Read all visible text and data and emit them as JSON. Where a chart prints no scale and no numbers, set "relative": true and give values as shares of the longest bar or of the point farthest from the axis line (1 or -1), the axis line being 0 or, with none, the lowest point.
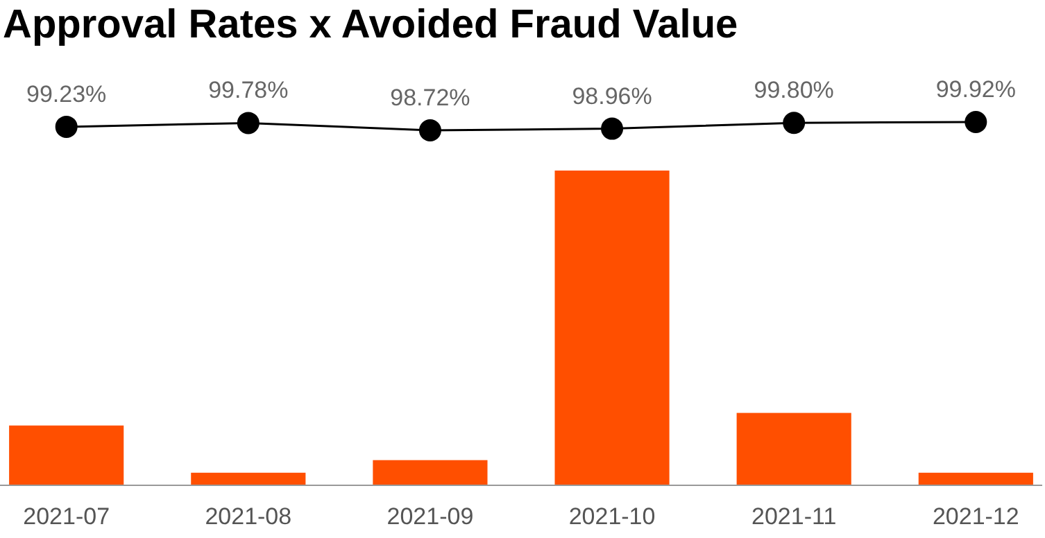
{
  "chart_data": [
    {
      "type": "line",
      "title": "Approval Rates x Avoided Fraud Value",
      "tick_labels": false,
      "marker": "circle",
      "categories": [
        "2021-07",
        "2021-08",
        "2021-09",
        "2021-10",
        "2021-11",
        "2021-12"
      ],
      "series": [
        {
          "color": "#000000",
          "values": [
            99.23,
            99.78,
            98.72,
            98.96,
            99.8,
            99.92
          ],
          "value_labels": [
            "99.23%",
            "99.78%",
            "98.72%",
            "98.96%",
            "99.80%",
            "99.92%"
          ]
        }
      ]
    },
    {
      "type": "bar",
      "relative": true,
      "categories": [
        "2021-07",
        "2021-08",
        "2021-09",
        "2021-10",
        "2021-11",
        "2021-12"
      ],
      "color": "#ff4f00",
      "values": [
        0.19,
        0.04,
        0.08,
        1,
        0.23,
        0.04
      ]
    }
  ]
}
